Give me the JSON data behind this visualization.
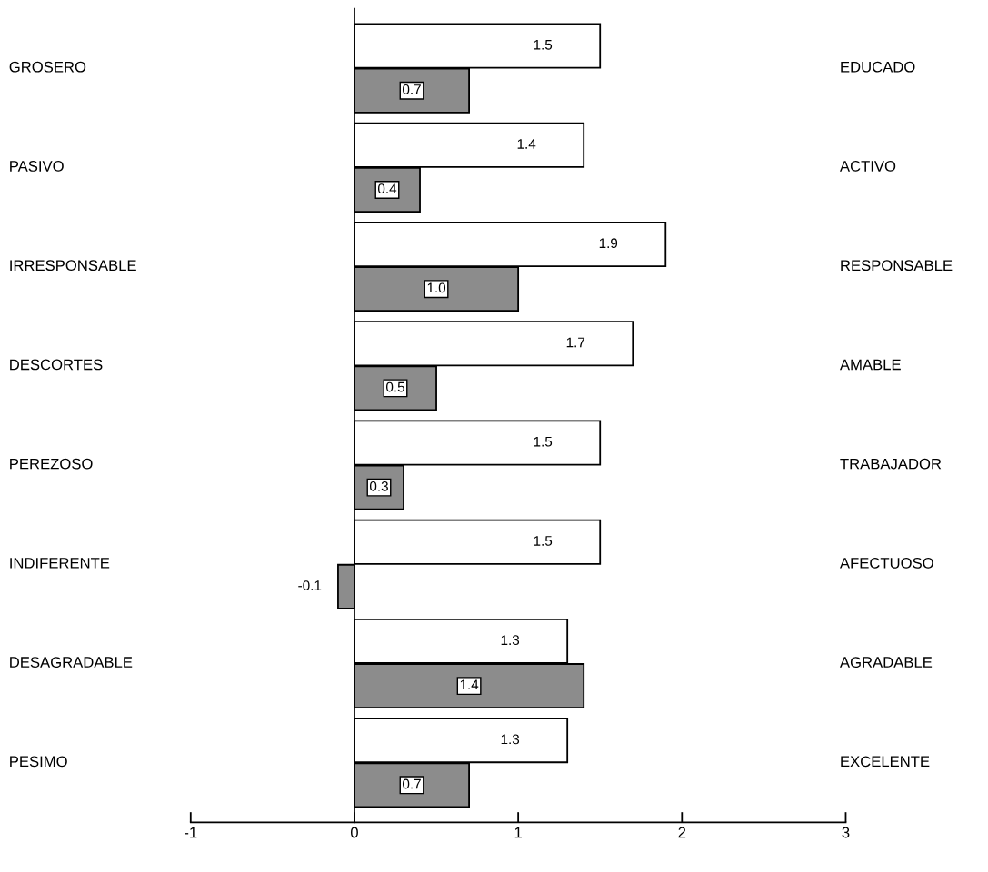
{
  "chart_data": {
    "type": "bar",
    "orientation": "horizontal",
    "categories": [
      "GROSERO",
      "PASIVO",
      "IRRESPONSABLE",
      "DESCORTES",
      "PEREZOSO",
      "INDIFERENTE",
      "DESAGRADABLE",
      "PESIMO"
    ],
    "series": [
      {
        "color": "#ffffff",
        "values": [
          1.5,
          1.4,
          1.9,
          1.7,
          1.5,
          1.5,
          1.3,
          1.3
        ],
        "value_labels": [
          "1.5",
          "1.4",
          "1.9",
          "1.7",
          "1.5",
          "1.5",
          "1.3",
          "1.3"
        ]
      },
      {
        "color": "#8c8c8c",
        "values": [
          0.7,
          0.4,
          1.0,
          0.5,
          0.3,
          -0.1,
          1.4,
          0.7
        ],
        "value_labels": [
          "0.7",
          "0.4",
          "1.0",
          "0.5",
          "0.3",
          "-0.1",
          "1.4",
          "0.7"
        ]
      }
    ],
    "annotations": [
      "EDUCADO",
      "ACTIVO",
      "RESPONSABLE",
      "AMABLE",
      "TRABAJADOR",
      "AFECTUOSO",
      "AGRADABLE",
      "EXCELENTE"
    ],
    "xlim": [
      -1,
      3
    ],
    "xticks": [
      -1,
      0,
      1,
      2,
      3
    ]
  }
}
